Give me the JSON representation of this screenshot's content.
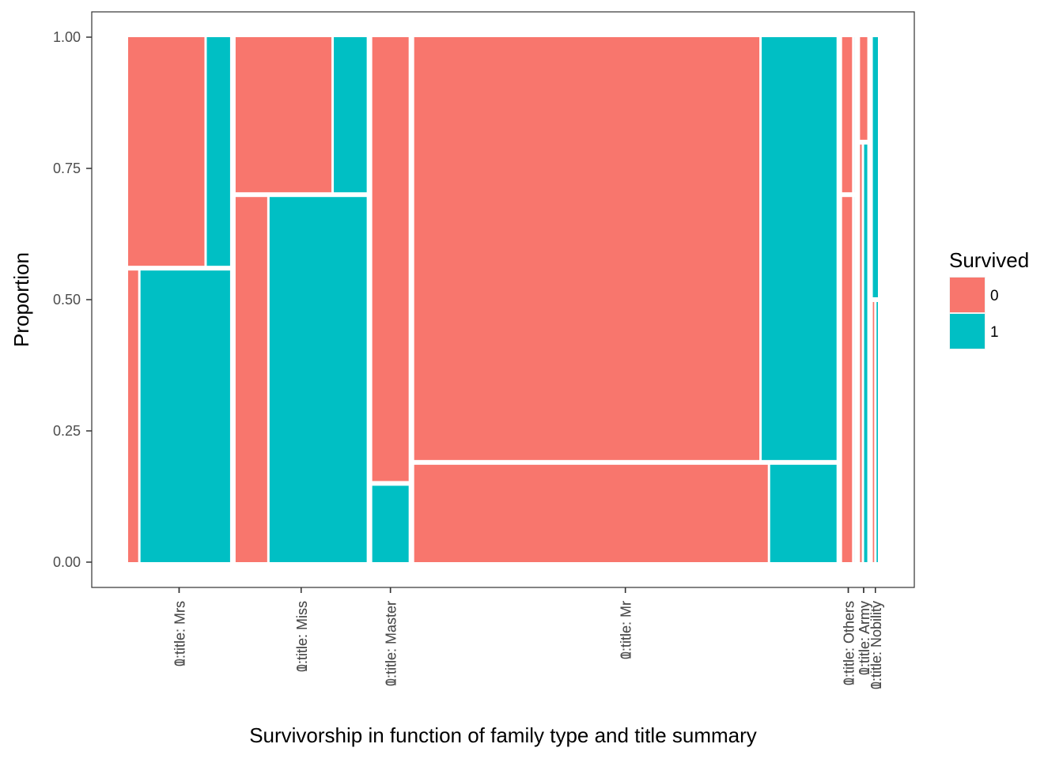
{
  "chart_data": {
    "type": "mosaic",
    "title": "",
    "xlabel": "Survivorship in function of family type and title summary",
    "ylabel": "Proportion",
    "ylim": [
      0,
      1
    ],
    "yticks": [
      "0.00",
      "0.25",
      "0.50",
      "0.75",
      "1.00"
    ],
    "grid": false,
    "legend": {
      "title": "Survived",
      "position": "right",
      "entries": [
        {
          "label": "0",
          "color": "#F8766D"
        },
        {
          "label": "1",
          "color": "#00BFC4"
        }
      ]
    },
    "columns": [
      {
        "family_share": 0.14,
        "upper": {
          "tick": "0:title: Mrs",
          "width": 0.44,
          "survived_0": 0.76,
          "survived_1": 0.24
        },
        "lower": {
          "tick": "1:title: Mrs",
          "width": 0.56,
          "survived_0": 0.11,
          "survived_1": 0.89
        }
      },
      {
        "family_share": 0.18,
        "upper": {
          "tick": "0:title: Miss",
          "width": 0.3,
          "survived_0": 0.74,
          "survived_1": 0.26
        },
        "lower": {
          "tick": "1:title: Miss",
          "width": 0.7,
          "survived_0": 0.25,
          "survived_1": 0.75
        }
      },
      {
        "family_share": 0.05,
        "upper": {
          "tick": "0:title: Master",
          "width": 0.85,
          "survived_0": 1.0,
          "survived_1": 0.0
        },
        "lower": {
          "tick": "1:title: Master",
          "width": 0.15,
          "survived_0": 0.0,
          "survived_1": 1.0
        }
      },
      {
        "family_share": 0.58,
        "upper": {
          "tick": "0:title: Mr",
          "width": 0.81,
          "survived_0": 0.82,
          "survived_1": 0.18
        },
        "lower": {
          "tick": "1:title: Mr",
          "width": 0.19,
          "survived_0": 0.84,
          "survived_1": 0.16
        }
      },
      {
        "family_share": 0.017,
        "upper": {
          "tick": "0:title: Others",
          "width": 0.3,
          "survived_0": 0.9,
          "survived_1": 0.1
        },
        "lower": {
          "tick": "1:title: Others",
          "width": 0.7,
          "survived_0": 0.9,
          "survived_1": 0.1
        }
      },
      {
        "family_share": 0.01,
        "upper": {
          "tick": "0:title: Army",
          "width": 0.2,
          "survived_0": 1.0,
          "survived_1": 0.0
        },
        "lower": {
          "tick": "1:title: Army",
          "width": 0.8,
          "survived_0": 0.4,
          "survived_1": 0.6
        }
      },
      {
        "family_share": 0.007,
        "upper": {
          "tick": "0:title: Nobility",
          "width": 0.5,
          "survived_0": 0.0,
          "survived_1": 1.0
        },
        "lower": {
          "tick": "1:title: Nobility",
          "width": 0.5,
          "survived_0": 0.5,
          "survived_1": 0.5
        }
      }
    ]
  }
}
